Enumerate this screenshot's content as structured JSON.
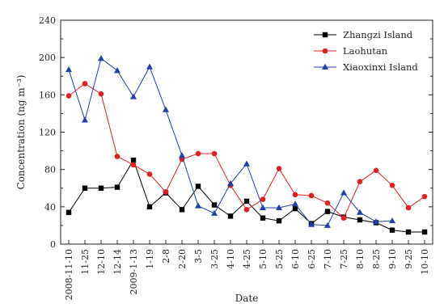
{
  "chart_data": {
    "type": "line",
    "xlabel": "Date",
    "ylabel": "Concentration (ng m⁻³)",
    "ylim": [
      0,
      240
    ],
    "yticks": [
      0,
      40,
      80,
      120,
      160,
      200,
      240
    ],
    "categories": [
      "2008-11-10",
      "11-25",
      "12-10",
      "12-14",
      "2009-1-13",
      "1-19",
      "2-8",
      "2-20",
      "3-5",
      "3-25",
      "4-10",
      "4-25",
      "5-10",
      "5-25",
      "6-10",
      "6-25",
      "7-10",
      "7-25",
      "8-10",
      "8-25",
      "9-10",
      "9-25",
      "10-10"
    ],
    "legend_position": "top-right",
    "grid": false,
    "series": [
      {
        "name": "Zhangzi Island",
        "color": "#000000",
        "marker": "square",
        "values": [
          34,
          60,
          60,
          61,
          90,
          40,
          55,
          37,
          62,
          42,
          30,
          46,
          28,
          25,
          38,
          22,
          35,
          29,
          26,
          23,
          15,
          13,
          13
        ]
      },
      {
        "name": "Laohutan",
        "color": "#e02020",
        "marker": "circle",
        "values": [
          159,
          172,
          161,
          94,
          85,
          75,
          56,
          91,
          97,
          97,
          63,
          37,
          48,
          81,
          53,
          52,
          44,
          28,
          67,
          79,
          63,
          39,
          51
        ]
      },
      {
        "name": "Xiaoxinxi Island",
        "color": "#1f3faa",
        "marker": "triangle",
        "values": [
          187,
          133,
          199,
          186,
          158,
          190,
          144,
          95,
          41,
          33,
          65,
          86,
          39,
          39,
          43,
          21,
          20,
          55,
          34,
          24,
          25,
          null,
          null
        ]
      }
    ]
  }
}
